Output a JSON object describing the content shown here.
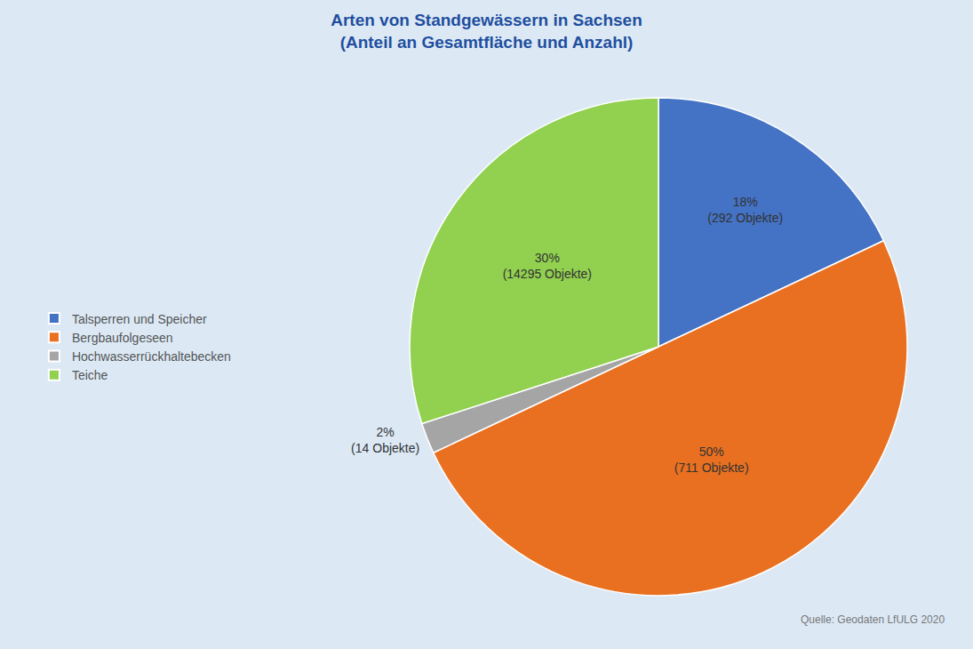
{
  "chart_data": {
    "type": "pie",
    "title": "Arten von Standgewässern in Sachsen",
    "subtitle": "(Anteil an Gesamtfläche und Anzahl)",
    "categories": [
      "Talsperren und Speicher",
      "Bergbaufolgeseen",
      "Hochwasserrückhaltebecken",
      "Teiche"
    ],
    "values": [
      18,
      50,
      2,
      30
    ],
    "value_labels": [
      "18%\n(292 Objekte)",
      "50%\n(711 Objekte)",
      "2%\n(14 Objekte)",
      "30%\n(14295 Objekte)"
    ],
    "colors": [
      "#4472C4",
      "#E97020",
      "#A5A5A5",
      "#92D050"
    ],
    "data_labels": true,
    "legend": "left",
    "annotations": [
      "Quelle: Geodaten LfULG 2020"
    ]
  }
}
